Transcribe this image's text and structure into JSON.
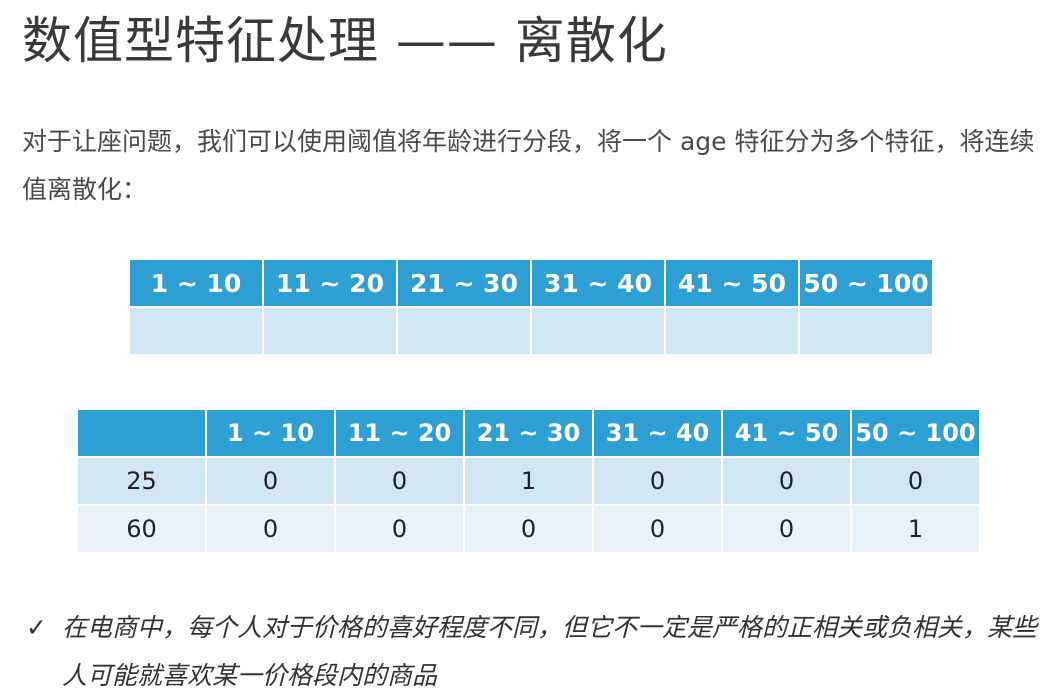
{
  "title": "数值型特征处理 —— 离散化",
  "intro": "对于让座问题，我们可以使用阈值将年龄进行分段，将一个 age 特征分为多个特征，将连续值离散化：",
  "bins": [
    "1 ~ 10",
    "11 ~ 20",
    "21 ~ 30",
    "31 ~ 40",
    "41 ~ 50",
    "50 ~ 100"
  ],
  "example_table": {
    "corner": "",
    "rows": [
      {
        "age": "25",
        "values": [
          "0",
          "0",
          "1",
          "0",
          "0",
          "0"
        ]
      },
      {
        "age": "60",
        "values": [
          "0",
          "0",
          "0",
          "0",
          "0",
          "1"
        ]
      }
    ]
  },
  "note": {
    "icon": "check-icon",
    "text": "在电商中，每个人对于价格的喜好程度不同，但它不一定是严格的正相关或负相关，某些人可能就喜欢某一价格段内的商品"
  }
}
